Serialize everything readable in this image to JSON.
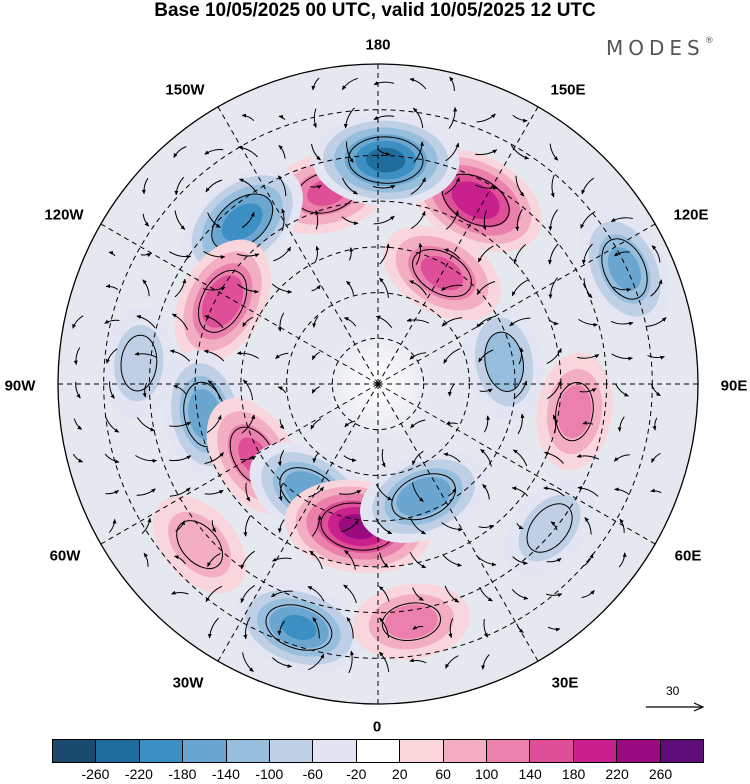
{
  "title": "Base 10/05/2025 00 UTC, valid 10/05/2025 12 UTC",
  "brand": "MODES",
  "brand_mark": "®",
  "longitude_labels": {
    "lon_180": "180",
    "lon_150e": "150E",
    "lon_120e": "120E",
    "lon_90e": "90E",
    "lon_60e": "60E",
    "lon_30e": "30E",
    "lon_0": "0",
    "lon_30w": "30W",
    "lon_60w": "60W",
    "lon_90w": "90W",
    "lon_120w": "120W",
    "lon_150w": "150W"
  },
  "reference_vector": "30",
  "colorbar": {
    "colors": [
      "#1a4a6e",
      "#1e6d9c",
      "#3b8fc2",
      "#6aa6cf",
      "#97bedd",
      "#bfd0e6",
      "#e3e6f2",
      "#ffffff",
      "#f9d6dc",
      "#f3aec2",
      "#ea80ab",
      "#df4f98",
      "#c8218d",
      "#9a0b82",
      "#5e0d78"
    ],
    "ticks": [
      "-260",
      "-220",
      "-180",
      "-140",
      "-100",
      "-60",
      "-20",
      "20",
      "60",
      "100",
      "140",
      "180",
      "220",
      "260"
    ]
  },
  "anomalies": [
    {
      "lon": -165,
      "r": 0.62,
      "v": 140
    },
    {
      "lon": -140,
      "r": 0.66,
      "v": -200
    },
    {
      "lon": -118,
      "r": 0.55,
      "v": 170
    },
    {
      "lon": -95,
      "r": 0.75,
      "v": -90
    },
    {
      "lon": -80,
      "r": 0.55,
      "v": -160
    },
    {
      "lon": -60,
      "r": 0.45,
      "v": 140
    },
    {
      "lon": -48,
      "r": 0.75,
      "v": 90
    },
    {
      "lon": -32,
      "r": 0.4,
      "v": -170
    },
    {
      "lon": -18,
      "r": 0.8,
      "v": -180
    },
    {
      "lon": -8,
      "r": 0.45,
      "v": 230
    },
    {
      "lon": 8,
      "r": 0.75,
      "v": 110
    },
    {
      "lon": 22,
      "r": 0.38,
      "v": -170
    },
    {
      "lon": 50,
      "r": 0.7,
      "v": -90
    },
    {
      "lon": 82,
      "r": 0.62,
      "v": 110
    },
    {
      "lon": 100,
      "r": 0.4,
      "v": -120
    },
    {
      "lon": 115,
      "r": 0.85,
      "v": -150
    },
    {
      "lon": 150,
      "r": 0.4,
      "v": 150
    },
    {
      "lon": 152,
      "r": 0.65,
      "v": 210
    },
    {
      "lon": 178,
      "r": 0.7,
      "v": -230
    }
  ]
}
